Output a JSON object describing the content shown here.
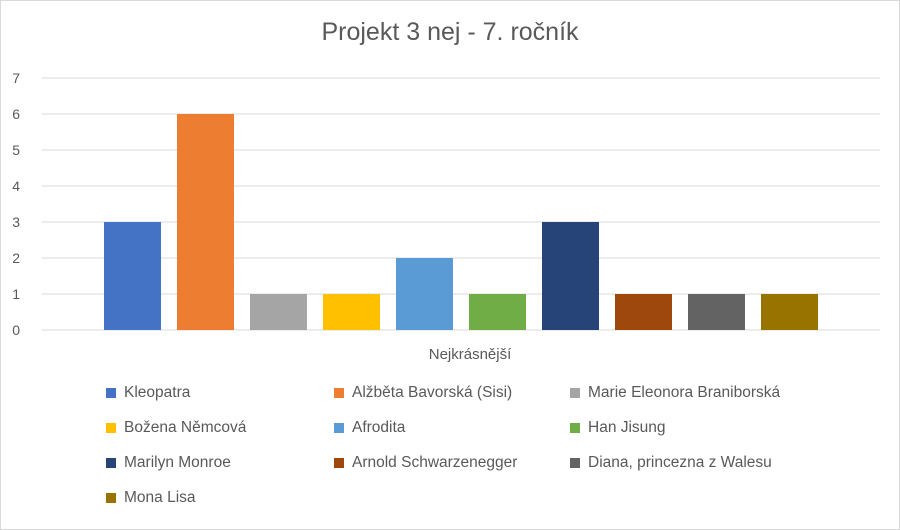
{
  "chart_data": {
    "type": "bar",
    "title": "Projekt 3 nej - 7. ročník",
    "xlabel": "Nejkrásnější",
    "ylabel": "",
    "ylim": [
      0,
      7
    ],
    "yticks": [
      0,
      1,
      2,
      3,
      4,
      5,
      6,
      7
    ],
    "grid": true,
    "legend_position": "bottom",
    "category": "Nejkrásnější",
    "series": [
      {
        "name": "Kleopatra",
        "value": 3,
        "color": "#4472C4"
      },
      {
        "name": "Alžběta Bavorská (Sisi)",
        "value": 6,
        "color": "#ED7D31"
      },
      {
        "name": "Marie Eleonora Braniborská",
        "value": 1,
        "color": "#A5A5A5"
      },
      {
        "name": "Božena Němcová",
        "value": 1,
        "color": "#FFC000"
      },
      {
        "name": "Afrodita",
        "value": 2,
        "color": "#5B9BD5"
      },
      {
        "name": "Han Jisung",
        "value": 1,
        "color": "#70AD47"
      },
      {
        "name": "Marilyn Monroe",
        "value": 3,
        "color": "#264478"
      },
      {
        "name": "Arnold Schwarzenegger",
        "value": 1,
        "color": "#9E480E"
      },
      {
        "name": "Diana, princezna z Walesu",
        "value": 1,
        "color": "#636363"
      },
      {
        "name": "Mona Lisa",
        "value": 1,
        "color": "#997300"
      }
    ]
  }
}
